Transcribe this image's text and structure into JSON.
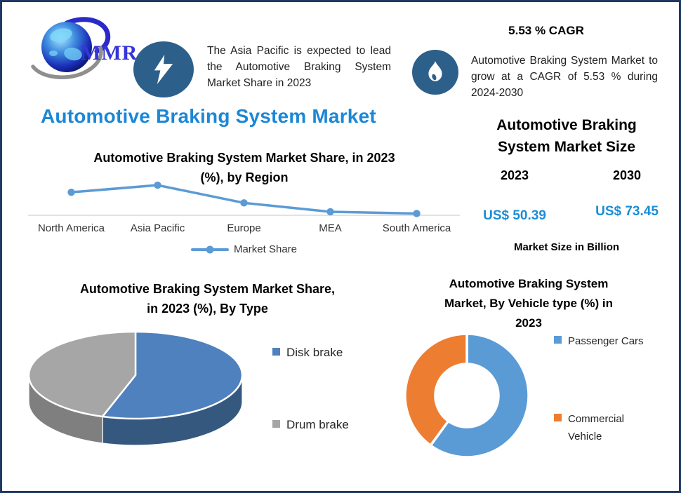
{
  "brand": {
    "logo_text": "MMR"
  },
  "header": {
    "left_callout": {
      "icon": "lightning-icon",
      "text": "The Asia Pacific is expected to lead the Automotive Braking System Market Share in 2023"
    },
    "right_callout": {
      "cagr_heading": "5.53 % CAGR",
      "icon": "flame-icon",
      "text": "Automotive Braking System Market to grow at a CAGR of 5.53 % during 2024-2030"
    }
  },
  "page_title": "Automotive Braking System Market",
  "market_size_panel": {
    "title_lines": [
      "Automotive Braking",
      "System Market Size"
    ],
    "columns": [
      {
        "year": "2023",
        "value": "US$ 50.39"
      },
      {
        "year": "2030",
        "value": "US$ 73.45"
      }
    ],
    "caption": "Market Size in Billion"
  },
  "chart_data": [
    {
      "id": "market-share-by-region",
      "type": "line",
      "title": "Automotive Braking System Market Share, in 2023 (%), by Region",
      "title_lines": [
        "Automotive Braking System Market Share, in 2023",
        "(%), by Region"
      ],
      "categories": [
        "North America",
        "Asia Pacific",
        "Europe",
        "MEA",
        "South America"
      ],
      "series": [
        {
          "name": "Market Share",
          "values": [
            30,
            38,
            18,
            8,
            6
          ]
        }
      ],
      "values_note": "y-axis unlabeled; values estimated from point heights",
      "ylim": [
        4,
        42
      ],
      "grid": false,
      "legend_position": "bottom",
      "color": "#5B9BD5",
      "axis_color": "#D9D9D9"
    },
    {
      "id": "market-share-by-type",
      "type": "pie",
      "style": "3d",
      "title": "Automotive Braking System Market Share, in 2023 (%), By Type",
      "title_lines": [
        "Automotive Braking System Market Share,",
        "in 2023 (%), By Type"
      ],
      "labels": [
        "Disk brake",
        "Drum brake"
      ],
      "values": [
        55,
        45
      ],
      "values_note": "slices unlabeled; percentages estimated from arc angles",
      "colors": [
        "#4E81BD",
        "#A6A6A6"
      ],
      "side_colors": [
        "#35597E",
        "#7F7F7F"
      ],
      "legend_position": "right"
    },
    {
      "id": "market-by-vehicle-type",
      "type": "pie",
      "style": "donut",
      "title": "Automotive Braking System Market, By Vehicle type (%) in 2023",
      "title_lines": [
        "Automotive Braking System",
        "Market, By Vehicle type (%) in",
        "2023"
      ],
      "labels": [
        "Passenger Cars",
        "Commercial Vehicle"
      ],
      "values": [
        60,
        40
      ],
      "values_note": "slices unlabeled; percentages estimated from arc angles",
      "colors": [
        "#5B9BD5",
        "#ED7D31"
      ],
      "legend_position": "right"
    }
  ],
  "colors": {
    "border_navy": "#1F3864",
    "icon_circle_bg": "#2D5F8B",
    "page_title_blue": "#1B87D6",
    "value_blue": "#1B8ED6",
    "axis_gray": "#D9D9D9"
  }
}
